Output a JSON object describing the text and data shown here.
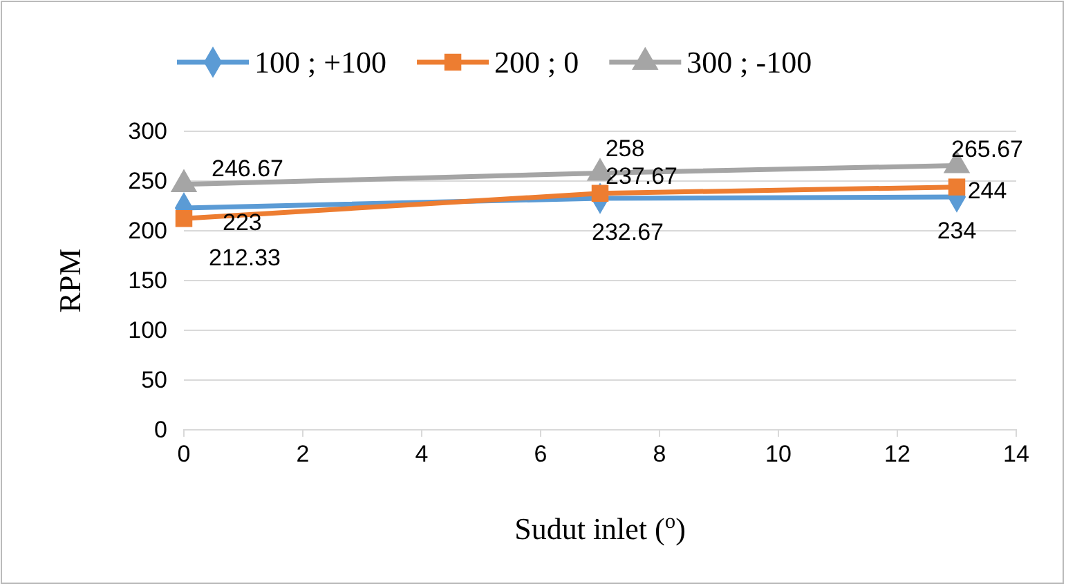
{
  "chart_data": {
    "type": "line",
    "xlabel": "Sudut inlet ($^{o}$)",
    "ylabel": "RPM",
    "x": [
      0,
      7,
      13
    ],
    "series": [
      {
        "name": "100 ; +100",
        "color": "#5b9bd5",
        "marker": "diamond",
        "values": [
          223,
          232.67,
          234
        ]
      },
      {
        "name": "200 ; 0",
        "color": "#ed7d31",
        "marker": "square",
        "values": [
          212.33,
          237.67,
          244
        ]
      },
      {
        "name": "300 ; -100",
        "color": "#a5a5a5",
        "marker": "triangle",
        "values": [
          246.67,
          258,
          265.67
        ]
      }
    ],
    "xlim": [
      0,
      14
    ],
    "xticks": [
      0,
      2,
      4,
      6,
      8,
      10,
      12,
      14
    ],
    "ylim": [
      0,
      300
    ],
    "yticks": [
      0,
      50,
      100,
      150,
      200,
      250,
      300
    ],
    "grid": "y",
    "legend": "top",
    "data_labels": true
  }
}
